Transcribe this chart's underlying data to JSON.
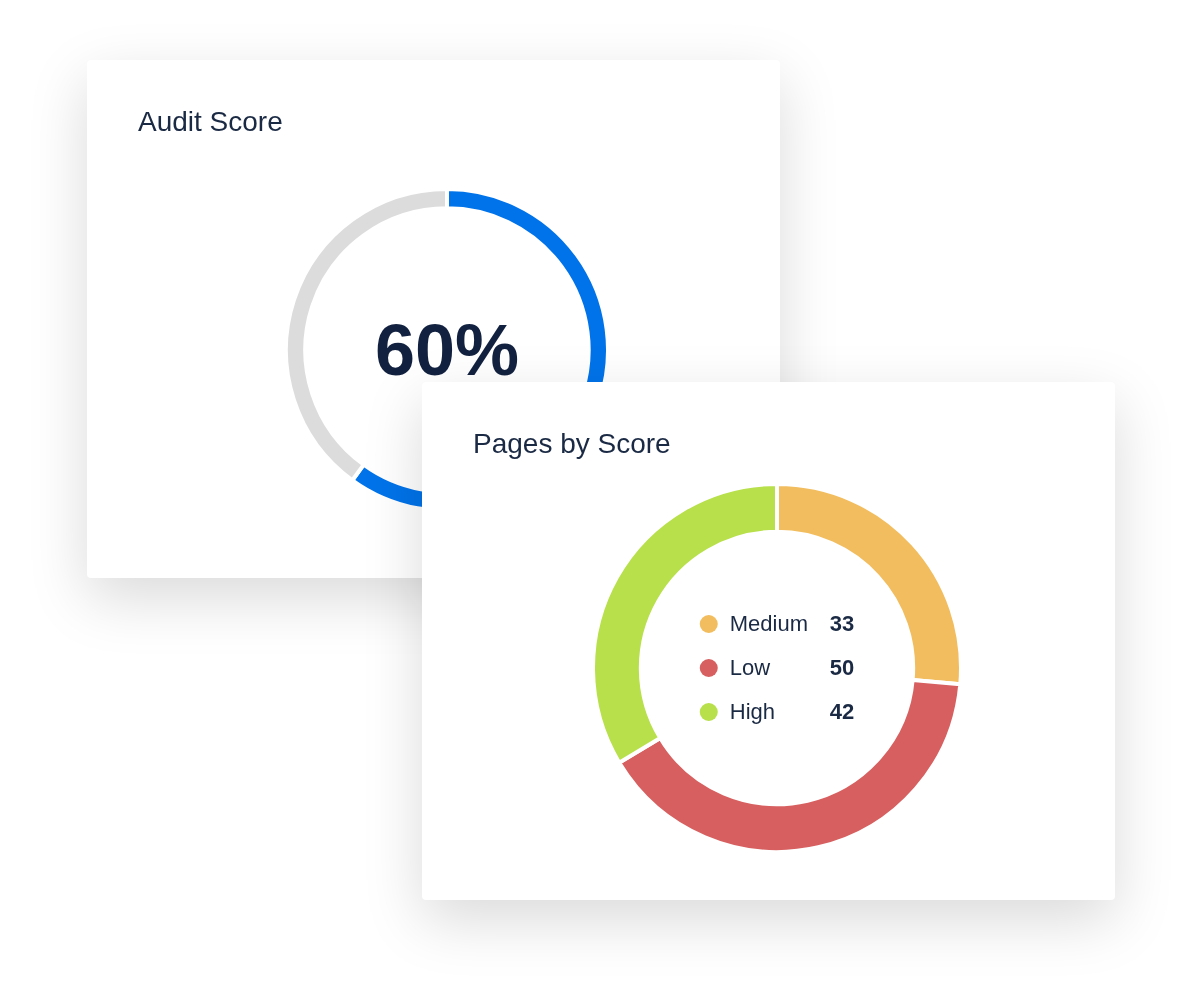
{
  "chart_data": [
    {
      "type": "donut",
      "title": "Audit Score",
      "categories": [
        null,
        null
      ],
      "values": [
        60,
        40
      ],
      "colors": [
        "#0073ea",
        "#dcdcdc"
      ],
      "value_labels": [
        "60%",
        null
      ]
    },
    {
      "type": "donut",
      "title": "Pages by Score",
      "categories": [
        "Medium",
        "Low",
        "High"
      ],
      "values": [
        33,
        50,
        42
      ],
      "colors": [
        "#f2bd5e",
        "#d75f5f",
        "#b7e04b"
      ],
      "legend": "center",
      "data_labels": true
    }
  ]
}
